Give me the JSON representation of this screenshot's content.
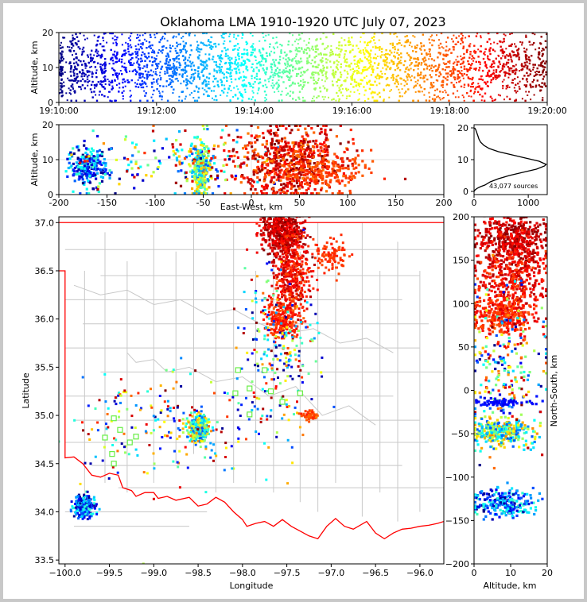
{
  "chart_data": [
    {
      "id": "time_height",
      "type": "scatter",
      "title": "Oklahoma LMA 1910-1920 UTC July 07, 2023",
      "xlabel": "",
      "ylabel": "Altitude, km",
      "xticks": [
        "19:10:00",
        "19:12:00",
        "19:14:00",
        "19:16:00",
        "19:18:00",
        "19:20:00"
      ],
      "xlim_minutes": [
        0,
        10
      ],
      "ylim": [
        0,
        20
      ],
      "yticks": [
        0,
        10,
        20
      ],
      "colormap": "jet (time)",
      "strikes": [
        {
          "t": 0.05,
          "w": 0.03
        },
        {
          "t": 0.28,
          "w": 0.08
        },
        {
          "t": 0.45,
          "w": 0.1
        },
        {
          "t": 0.7,
          "w": 0.12
        },
        {
          "t": 0.9,
          "w": 0.06
        },
        {
          "t": 1.15,
          "w": 0.1
        },
        {
          "t": 1.4,
          "w": 0.12
        },
        {
          "t": 1.65,
          "w": 0.08
        },
        {
          "t": 1.85,
          "w": 0.1
        },
        {
          "t": 2.1,
          "w": 0.15
        },
        {
          "t": 2.3,
          "w": 0.1
        },
        {
          "t": 2.5,
          "w": 0.12
        },
        {
          "t": 2.72,
          "w": 0.15
        },
        {
          "t": 2.95,
          "w": 0.1
        },
        {
          "t": 3.2,
          "w": 0.15
        },
        {
          "t": 3.45,
          "w": 0.12
        },
        {
          "t": 3.7,
          "w": 0.1
        },
        {
          "t": 3.9,
          "w": 0.12
        },
        {
          "t": 4.15,
          "w": 0.12
        },
        {
          "t": 4.45,
          "w": 0.14
        },
        {
          "t": 4.7,
          "w": 0.1
        },
        {
          "t": 4.95,
          "w": 0.12
        },
        {
          "t": 5.2,
          "w": 0.12
        },
        {
          "t": 5.45,
          "w": 0.14
        },
        {
          "t": 5.7,
          "w": 0.1
        },
        {
          "t": 5.95,
          "w": 0.12
        },
        {
          "t": 6.2,
          "w": 0.12
        },
        {
          "t": 6.4,
          "w": 0.1
        },
        {
          "t": 6.65,
          "w": 0.14
        },
        {
          "t": 6.9,
          "w": 0.12
        },
        {
          "t": 7.2,
          "w": 0.14
        },
        {
          "t": 7.45,
          "w": 0.1
        },
        {
          "t": 7.7,
          "w": 0.12
        },
        {
          "t": 7.95,
          "w": 0.14
        },
        {
          "t": 8.2,
          "w": 0.12
        },
        {
          "t": 8.45,
          "w": 0.1
        },
        {
          "t": 8.7,
          "w": 0.12
        },
        {
          "t": 8.95,
          "w": 0.14
        },
        {
          "t": 9.2,
          "w": 0.12
        },
        {
          "t": 9.45,
          "w": 0.12
        },
        {
          "t": 9.7,
          "w": 0.14
        },
        {
          "t": 9.9,
          "w": 0.08
        }
      ]
    },
    {
      "id": "ew_altitude",
      "type": "scatter",
      "xlabel": "East-West, km",
      "ylabel": "Altitude, km",
      "xlim": [
        -200,
        200
      ],
      "xticks": [
        -200,
        -150,
        -100,
        -50,
        0,
        50,
        100,
        150,
        200
      ],
      "ylim": [
        0,
        20
      ],
      "yticks": [
        0,
        10,
        20
      ],
      "clusters": [
        {
          "x": -170,
          "sx": 10,
          "y": 8,
          "sy": 3,
          "n": 220,
          "tmin": 0.0,
          "tmax": 0.45
        },
        {
          "x": -52,
          "sx": 5,
          "y": 7,
          "sy": 4,
          "n": 300,
          "tmin": 0.2,
          "tmax": 0.75
        },
        {
          "x": -80,
          "sx": 45,
          "y": 10,
          "sy": 5,
          "n": 160,
          "tmin": 0.0,
          "tmax": 1.0
        },
        {
          "x": 40,
          "sx": 28,
          "y": 9,
          "sy": 5,
          "n": 700,
          "tmin": 0.75,
          "tmax": 1.0
        },
        {
          "x": 80,
          "sx": 20,
          "y": 7,
          "sy": 3,
          "n": 160,
          "tmin": 0.78,
          "tmax": 0.85
        }
      ]
    },
    {
      "id": "altitude_histogram",
      "type": "line",
      "xlabel": "",
      "xlim": [
        0,
        1350
      ],
      "xticks": [
        0,
        1000
      ],
      "ylim": [
        -1,
        21
      ],
      "yticks": [
        0,
        10,
        20
      ],
      "annotation": "43,077 sources",
      "profile": [
        [
          0,
          0
        ],
        [
          20,
          0.5
        ],
        [
          60,
          1
        ],
        [
          120,
          1.5
        ],
        [
          200,
          2
        ],
        [
          300,
          3
        ],
        [
          450,
          4
        ],
        [
          650,
          5
        ],
        [
          900,
          6
        ],
        [
          1150,
          7
        ],
        [
          1300,
          8
        ],
        [
          1330,
          8.5
        ],
        [
          1200,
          9.5
        ],
        [
          950,
          10.5
        ],
        [
          700,
          11.5
        ],
        [
          450,
          12.5
        ],
        [
          280,
          13.5
        ],
        [
          180,
          14.5
        ],
        [
          120,
          15.5
        ],
        [
          90,
          16.5
        ],
        [
          70,
          17.5
        ],
        [
          50,
          18.5
        ],
        [
          30,
          19.5
        ],
        [
          10,
          20
        ]
      ]
    },
    {
      "id": "plan_view",
      "type": "scatter",
      "xlabel": "Longitude",
      "ylabel": "Latitude",
      "xlim": [
        -100.07,
        -95.73
      ],
      "xticks": [
        -100.0,
        -99.5,
        -99.0,
        -98.5,
        -98.0,
        -97.5,
        -97.0,
        -96.5,
        -96.0
      ],
      "ylim": [
        33.46,
        37.06
      ],
      "yticks": [
        33.5,
        34.0,
        34.5,
        35.0,
        35.5,
        36.0,
        36.5,
        37.0
      ],
      "stations": [
        [
          -98.05,
          35.47
        ],
        [
          -97.75,
          35.47
        ],
        [
          -97.92,
          35.28
        ],
        [
          -98.08,
          35.23
        ],
        [
          -97.68,
          35.25
        ],
        [
          -97.35,
          35.23
        ],
        [
          -97.55,
          35.14
        ],
        [
          -97.92,
          35.01
        ],
        [
          -99.45,
          34.97
        ],
        [
          -99.38,
          34.85
        ],
        [
          -99.55,
          34.77
        ],
        [
          -99.47,
          34.6
        ],
        [
          -99.45,
          34.5
        ],
        [
          -99.27,
          34.72
        ],
        [
          -99.2,
          34.78
        ]
      ],
      "clusters": [
        {
          "x": -97.55,
          "sx": 0.12,
          "y": 36.9,
          "sy": 0.12,
          "n": 520,
          "tmin": 0.85,
          "tmax": 1.0
        },
        {
          "x": -97.45,
          "sx": 0.1,
          "y": 36.45,
          "sy": 0.22,
          "n": 420,
          "tmin": 0.8,
          "tmax": 0.95
        },
        {
          "x": -97.55,
          "sx": 0.1,
          "y": 36.0,
          "sy": 0.1,
          "n": 220,
          "tmin": 0.78,
          "tmax": 0.9
        },
        {
          "x": -97.0,
          "sx": 0.1,
          "y": 36.65,
          "sy": 0.08,
          "n": 100,
          "tmin": 0.8,
          "tmax": 0.85
        },
        {
          "x": -97.6,
          "sx": 0.22,
          "y": 35.7,
          "sy": 0.45,
          "n": 240,
          "tmin": 0.0,
          "tmax": 1.0
        },
        {
          "x": -98.5,
          "sx": 0.06,
          "y": 34.85,
          "sy": 0.07,
          "n": 300,
          "tmin": 0.2,
          "tmax": 0.75
        },
        {
          "x": -99.78,
          "sx": 0.06,
          "y": 34.06,
          "sy": 0.06,
          "n": 220,
          "tmin": 0.0,
          "tmax": 0.45
        },
        {
          "x": -97.25,
          "sx": 0.05,
          "y": 35.0,
          "sy": 0.03,
          "n": 50,
          "tmin": 0.75,
          "tmax": 0.85
        },
        {
          "x": -98.8,
          "sx": 0.55,
          "y": 34.9,
          "sy": 0.3,
          "n": 200,
          "tmin": 0.0,
          "tmax": 1.0
        }
      ]
    },
    {
      "id": "altitude_ns",
      "type": "scatter",
      "xlabel": "Altitude, km",
      "ylabel": "North-South, km",
      "xlim": [
        0,
        20
      ],
      "xticks": [
        0,
        10,
        20
      ],
      "ylim": [
        -200,
        200
      ],
      "yticks": [
        -200,
        -150,
        -100,
        -50,
        0,
        50,
        100,
        150,
        200
      ],
      "clusters": [
        {
          "x": 11,
          "sx": 5,
          "y": 175,
          "sy": 18,
          "n": 500,
          "tmin": 0.85,
          "tmax": 1.0
        },
        {
          "x": 10,
          "sx": 5,
          "y": 125,
          "sy": 25,
          "n": 400,
          "tmin": 0.8,
          "tmax": 0.95
        },
        {
          "x": 8,
          "sx": 4,
          "y": 85,
          "sy": 10,
          "n": 250,
          "tmin": 0.78,
          "tmax": 0.9
        },
        {
          "x": 9,
          "sx": 5,
          "y": 20,
          "sy": 45,
          "n": 250,
          "tmin": 0.0,
          "tmax": 1.0
        },
        {
          "x": 7,
          "sx": 4,
          "y": -48,
          "sy": 8,
          "n": 300,
          "tmin": 0.2,
          "tmax": 0.75
        },
        {
          "x": 8,
          "sx": 4,
          "y": -130,
          "sy": 8,
          "n": 240,
          "tmin": 0.0,
          "tmax": 0.45
        },
        {
          "x": 8,
          "sx": 4,
          "y": -14,
          "sy": 2,
          "n": 60,
          "tmin": 0.1,
          "tmax": 0.15
        }
      ]
    }
  ]
}
